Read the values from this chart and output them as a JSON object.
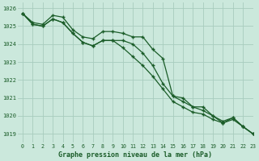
{
  "title": "Graphe pression niveau de la mer (hPa)",
  "background_color": "#cbe8dc",
  "grid_color": "#a8ccbe",
  "line_color": "#1a5c28",
  "xlim": [
    -0.5,
    23
  ],
  "ylim": [
    1018.5,
    1026.3
  ],
  "yticks": [
    1019,
    1020,
    1021,
    1022,
    1023,
    1024,
    1025,
    1026
  ],
  "xticks": [
    0,
    1,
    2,
    3,
    4,
    5,
    6,
    7,
    8,
    9,
    10,
    11,
    12,
    13,
    14,
    15,
    16,
    17,
    18,
    19,
    20,
    21,
    22,
    23
  ],
  "series1": [
    1025.7,
    1025.2,
    1025.1,
    1025.6,
    1025.5,
    1024.8,
    1024.4,
    1024.3,
    1024.7,
    1024.7,
    1024.6,
    1024.4,
    1024.4,
    1023.7,
    1023.2,
    1021.1,
    1021.0,
    1020.5,
    1020.5,
    1020.0,
    1019.6,
    1019.9,
    1019.4,
    1019.0
  ],
  "series2": [
    1025.7,
    1025.1,
    1025.0,
    1025.4,
    1025.2,
    1024.6,
    1024.1,
    1023.9,
    1024.2,
    1024.2,
    1024.2,
    1024.0,
    1023.5,
    1022.8,
    1021.8,
    1021.1,
    1020.8,
    1020.5,
    1020.3,
    1020.0,
    1019.7,
    1019.9,
    1019.4,
    1019.0
  ],
  "series3": [
    1025.7,
    1025.1,
    1025.0,
    1025.4,
    1025.2,
    1024.6,
    1024.1,
    1023.9,
    1024.2,
    1024.2,
    1023.8,
    1023.3,
    1022.8,
    1022.2,
    1021.5,
    1020.8,
    1020.5,
    1020.2,
    1020.1,
    1019.8,
    1019.6,
    1019.8,
    1019.4,
    1019.0
  ]
}
